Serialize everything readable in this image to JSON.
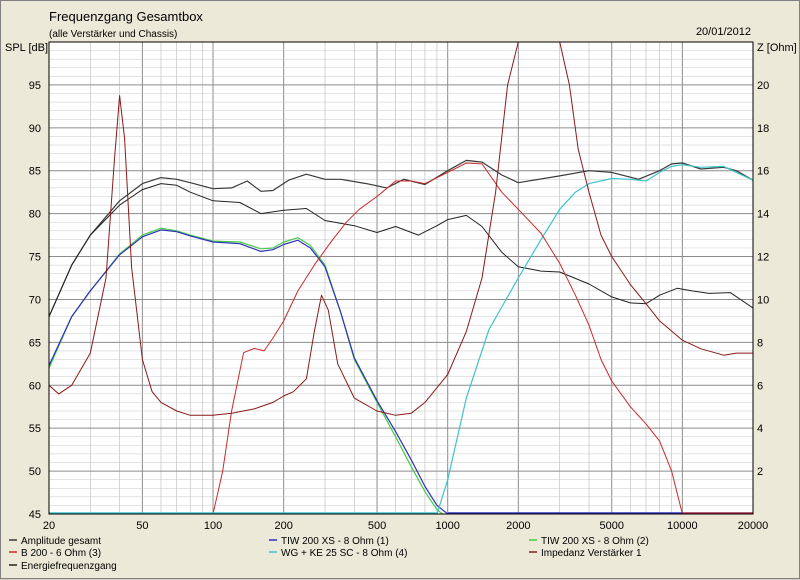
{
  "chart_data": {
    "type": "line",
    "title": "Frequenzgang Gesamtbox",
    "subtitle": "(alle Verstärker und Chassis)",
    "date": "20/01/2012",
    "ylabel": "SPL [dB]",
    "y2label": "Z [Ohm]",
    "xscale": "log",
    "xlim": [
      20,
      20000
    ],
    "ylim": [
      45,
      100
    ],
    "y2lim": [
      0,
      22
    ],
    "grid": true,
    "x_ticks": [
      "20",
      "50",
      "100",
      "200",
      "500",
      "1000",
      "2000",
      "5000",
      "10000",
      "20000"
    ],
    "y_ticks": [
      "45",
      "50",
      "55",
      "60",
      "65",
      "70",
      "75",
      "80",
      "85",
      "90",
      "95"
    ],
    "y2_ticks": [
      "2",
      "4",
      "6",
      "8",
      "10",
      "12",
      "14",
      "16",
      "18",
      "20"
    ],
    "legend": [
      {
        "name": "Amplitude gesamt",
        "color": "#3a3a3a"
      },
      {
        "name": "TIW 200 XS - 8 Ohm (1)",
        "color": "#3030c0"
      },
      {
        "name": "TIW 200 XS - 8 Ohm (2)",
        "color": "#44cc44"
      },
      {
        "name": "B 200 - 6 Ohm (3)",
        "color": "#cc2a2a"
      },
      {
        "name": "WG + KE 25 SC - 8 Ohm (4)",
        "color": "#3cc4cc"
      },
      {
        "name": "Impedanz Verstärker 1",
        "color": "#8a1a1a"
      },
      {
        "name": "Energiefrequenzgang",
        "color": "#222222"
      }
    ],
    "series": [
      {
        "name": "Amplitude gesamt",
        "color": "#3a3a3a",
        "axis": "left",
        "width": 1.2,
        "points": [
          [
            20,
            68
          ],
          [
            25,
            74
          ],
          [
            30,
            77.5
          ],
          [
            40,
            81.5
          ],
          [
            50,
            83.5
          ],
          [
            60,
            84.2
          ],
          [
            70,
            84
          ],
          [
            80,
            83.6
          ],
          [
            100,
            82.9
          ],
          [
            120,
            83
          ],
          [
            140,
            83.8
          ],
          [
            160,
            82.6
          ],
          [
            180,
            82.7
          ],
          [
            210,
            83.9
          ],
          [
            250,
            84.6
          ],
          [
            300,
            84
          ],
          [
            350,
            84
          ],
          [
            450,
            83.5
          ],
          [
            550,
            83
          ],
          [
            650,
            84
          ],
          [
            800,
            83.4
          ],
          [
            1000,
            85
          ],
          [
            1200,
            86.2
          ],
          [
            1400,
            86
          ],
          [
            1700,
            84.5
          ],
          [
            2000,
            83.6
          ],
          [
            3000,
            84.4
          ],
          [
            4000,
            85
          ],
          [
            5000,
            84.8
          ],
          [
            6500,
            84
          ],
          [
            8000,
            85
          ],
          [
            9000,
            85.8
          ],
          [
            10000,
            85.9
          ],
          [
            12000,
            85.2
          ],
          [
            15000,
            85.4
          ],
          [
            17000,
            85
          ],
          [
            20000,
            83.9
          ]
        ]
      },
      {
        "name": "Energiefrequenzgang",
        "color": "#222222",
        "axis": "left",
        "width": 1.0,
        "points": [
          [
            20,
            68
          ],
          [
            25,
            74
          ],
          [
            30,
            77.5
          ],
          [
            40,
            81
          ],
          [
            50,
            82.8
          ],
          [
            60,
            83.5
          ],
          [
            70,
            83.3
          ],
          [
            80,
            82.5
          ],
          [
            100,
            81.5
          ],
          [
            130,
            81.3
          ],
          [
            160,
            80
          ],
          [
            200,
            80.4
          ],
          [
            250,
            80.6
          ],
          [
            300,
            79.2
          ],
          [
            400,
            78.6
          ],
          [
            500,
            77.8
          ],
          [
            600,
            78.5
          ],
          [
            750,
            77.5
          ],
          [
            900,
            78.6
          ],
          [
            1000,
            79.3
          ],
          [
            1200,
            79.8
          ],
          [
            1400,
            78.5
          ],
          [
            1700,
            75.5
          ],
          [
            2000,
            73.8
          ],
          [
            2500,
            73.3
          ],
          [
            3000,
            73.2
          ],
          [
            4000,
            71.8
          ],
          [
            5000,
            70.3
          ],
          [
            6000,
            69.6
          ],
          [
            7000,
            69.5
          ],
          [
            8000,
            70.5
          ],
          [
            9500,
            71.3
          ],
          [
            11000,
            71
          ],
          [
            13000,
            70.7
          ],
          [
            16000,
            70.8
          ],
          [
            20000,
            69
          ]
        ]
      },
      {
        "name": "TIW 200 XS - 8 Ohm (2)",
        "color": "#44cc44",
        "axis": "left",
        "width": 1.2,
        "points": [
          [
            20,
            62
          ],
          [
            25,
            68
          ],
          [
            30,
            71
          ],
          [
            40,
            75.3
          ],
          [
            50,
            77.5
          ],
          [
            60,
            78.3
          ],
          [
            70,
            78
          ],
          [
            80,
            77.5
          ],
          [
            100,
            76.8
          ],
          [
            130,
            76.7
          ],
          [
            160,
            75.9
          ],
          [
            180,
            76
          ],
          [
            200,
            76.7
          ],
          [
            230,
            77.2
          ],
          [
            260,
            76.3
          ],
          [
            300,
            74
          ],
          [
            350,
            68.5
          ],
          [
            400,
            63
          ],
          [
            500,
            58
          ],
          [
            600,
            54
          ],
          [
            700,
            50.5
          ],
          [
            800,
            47.6
          ],
          [
            900,
            45.5
          ],
          [
            950,
            45
          ]
        ]
      },
      {
        "name": "TIW 200 XS - 8 Ohm (1)",
        "color": "#3030c0",
        "axis": "left",
        "width": 1.2,
        "points": [
          [
            20,
            62.3
          ],
          [
            25,
            68
          ],
          [
            30,
            71
          ],
          [
            40,
            75.2
          ],
          [
            50,
            77.3
          ],
          [
            60,
            78.1
          ],
          [
            70,
            77.9
          ],
          [
            80,
            77.4
          ],
          [
            100,
            76.7
          ],
          [
            130,
            76.5
          ],
          [
            160,
            75.6
          ],
          [
            180,
            75.8
          ],
          [
            200,
            76.4
          ],
          [
            230,
            76.9
          ],
          [
            260,
            76
          ],
          [
            300,
            73.8
          ],
          [
            350,
            68.5
          ],
          [
            400,
            63.2
          ],
          [
            500,
            58.2
          ],
          [
            600,
            54.6
          ],
          [
            700,
            51.3
          ],
          [
            800,
            48.2
          ],
          [
            900,
            46
          ],
          [
            1000,
            45
          ]
        ]
      },
      {
        "name": "WG + KE 25 SC - 8 Ohm (4)",
        "color": "#3cc4cc",
        "axis": "left",
        "width": 1.2,
        "points": [
          [
            900,
            45
          ],
          [
            1000,
            49
          ],
          [
            1200,
            58.5
          ],
          [
            1500,
            66.5
          ],
          [
            2000,
            72.5
          ],
          [
            2500,
            77
          ],
          [
            3000,
            80.5
          ],
          [
            3500,
            82.5
          ],
          [
            4000,
            83.5
          ],
          [
            5000,
            84.1
          ],
          [
            6000,
            84
          ],
          [
            7000,
            83.8
          ],
          [
            8000,
            84.8
          ],
          [
            9000,
            85.5
          ],
          [
            10000,
            85.7
          ],
          [
            12000,
            85.4
          ],
          [
            15000,
            85.5
          ],
          [
            20000,
            83.9
          ]
        ]
      },
      {
        "name": "B 200 - 6 Ohm (3)",
        "color": "#cc2a2a",
        "axis": "left",
        "width": 1.0,
        "points": [
          [
            100,
            45
          ],
          [
            110,
            50
          ],
          [
            120,
            57
          ],
          [
            135,
            63.8
          ],
          [
            150,
            64.3
          ],
          [
            165,
            64
          ],
          [
            180,
            65.5
          ],
          [
            200,
            67.5
          ],
          [
            230,
            71
          ],
          [
            270,
            74
          ],
          [
            320,
            76.8
          ],
          [
            370,
            79
          ],
          [
            420,
            80.5
          ],
          [
            500,
            82
          ],
          [
            600,
            83.8
          ],
          [
            700,
            83.8
          ],
          [
            800,
            83.5
          ],
          [
            1000,
            84.8
          ],
          [
            1200,
            85.9
          ],
          [
            1400,
            85.8
          ],
          [
            1700,
            82.5
          ],
          [
            2000,
            80.5
          ],
          [
            2500,
            77.7
          ],
          [
            3000,
            74.2
          ],
          [
            3500,
            70.5
          ],
          [
            4000,
            67
          ],
          [
            4500,
            63
          ],
          [
            5000,
            60.5
          ],
          [
            6000,
            57.5
          ],
          [
            7000,
            55.5
          ],
          [
            8000,
            53.5
          ],
          [
            9000,
            50
          ],
          [
            10000,
            45
          ]
        ]
      },
      {
        "name": "Impedanz Verstärker 1",
        "color": "#8a1a1a",
        "axis": "right",
        "width": 1.0,
        "points": [
          [
            20,
            6
          ],
          [
            22,
            5.6
          ],
          [
            25,
            6
          ],
          [
            30,
            7.5
          ],
          [
            35,
            11
          ],
          [
            38,
            16.5
          ],
          [
            40,
            19.5
          ],
          [
            42,
            17.5
          ],
          [
            45,
            11.5
          ],
          [
            50,
            7.2
          ],
          [
            55,
            5.7
          ],
          [
            60,
            5.2
          ],
          [
            70,
            4.8
          ],
          [
            80,
            4.6
          ],
          [
            100,
            4.6
          ],
          [
            120,
            4.7
          ],
          [
            150,
            4.9
          ],
          [
            180,
            5.2
          ],
          [
            200,
            5.5
          ],
          [
            220,
            5.7
          ],
          [
            250,
            6.3
          ],
          [
            270,
            8.5
          ],
          [
            290,
            10.2
          ],
          [
            310,
            9.5
          ],
          [
            340,
            7
          ],
          [
            400,
            5.4
          ],
          [
            500,
            4.8
          ],
          [
            600,
            4.6
          ],
          [
            700,
            4.7
          ],
          [
            800,
            5.2
          ],
          [
            1000,
            6.5
          ],
          [
            1200,
            8.5
          ],
          [
            1400,
            11
          ],
          [
            1600,
            15
          ],
          [
            1800,
            20
          ],
          [
            2000,
            22
          ],
          [
            3000,
            22
          ],
          [
            3300,
            20
          ],
          [
            3600,
            17
          ],
          [
            4000,
            15
          ],
          [
            4500,
            13
          ],
          [
            5000,
            12
          ],
          [
            6000,
            10.7
          ],
          [
            7000,
            9.8
          ],
          [
            8000,
            9
          ],
          [
            10000,
            8.1
          ],
          [
            12000,
            7.7
          ],
          [
            15000,
            7.4
          ],
          [
            17000,
            7.5
          ],
          [
            20000,
            7.5
          ]
        ]
      }
    ]
  }
}
